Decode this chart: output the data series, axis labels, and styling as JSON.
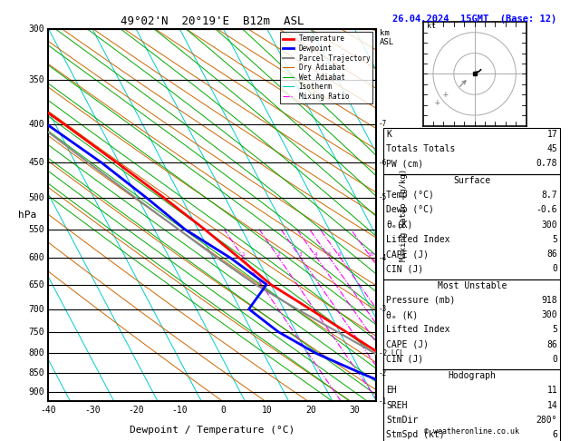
{
  "title_left": "49°02'N  20°19'E  B12m  ASL",
  "title_right": "26.04.2024  15GMT  (Base: 12)",
  "xlabel": "Dewpoint / Temperature (°C)",
  "pressure_levels": [
    300,
    350,
    400,
    450,
    500,
    550,
    600,
    650,
    700,
    750,
    800,
    850,
    900
  ],
  "pmin": 300,
  "pmax": 925,
  "tmin": -40,
  "tmax": 35,
  "temp_profile": {
    "pressure": [
      925,
      900,
      850,
      800,
      750,
      700,
      650,
      600,
      550,
      500,
      450,
      400,
      350,
      300
    ],
    "temperature": [
      8.7,
      6.5,
      2.0,
      -3.5,
      -8.5,
      -14.0,
      -20.0,
      -24.0,
      -28.5,
      -34.0,
      -40.5,
      -48.0,
      -57.0,
      -44.0
    ]
  },
  "dewp_profile": {
    "pressure": [
      925,
      900,
      850,
      800,
      750,
      700,
      650,
      600,
      550,
      500,
      450,
      400,
      350,
      300
    ],
    "dewpoint": [
      -0.6,
      -2.0,
      -10.0,
      -18.0,
      -24.0,
      -28.0,
      -21.0,
      -26.0,
      -33.0,
      -38.0,
      -44.0,
      -52.0,
      -60.0,
      -54.0
    ]
  },
  "parcel_profile": {
    "pressure": [
      925,
      900,
      850,
      800,
      750,
      700,
      650,
      600,
      550,
      500,
      450,
      400,
      350,
      300
    ],
    "temperature": [
      8.7,
      6.5,
      1.5,
      -4.5,
      -10.5,
      -17.0,
      -23.5,
      -29.0,
      -34.5,
      -40.5,
      -47.0,
      -54.0,
      -61.0,
      -54.0
    ]
  },
  "mixing_ratio_lines": [
    1,
    2,
    3,
    4,
    5,
    6,
    10,
    15,
    20,
    25
  ],
  "right_panel": {
    "K": 17,
    "TotTot": 45,
    "PW": 0.78,
    "surf_temp": 8.7,
    "surf_dewp": -0.6,
    "surf_theta_e": 300,
    "surf_li": 5,
    "surf_cape": 86,
    "surf_cin": 0,
    "mu_pressure": 918,
    "mu_theta_e": 300,
    "mu_li": 5,
    "mu_cape": 86,
    "mu_cin": 0,
    "EH": 11,
    "SREH": 14,
    "StmDir": 280,
    "StmSpd": 6
  },
  "skew_degC_per_decade_p": 45.0,
  "legend_items": [
    {
      "label": "Temperature",
      "color": "#ff0000",
      "lw": 2.0,
      "ls": "-"
    },
    {
      "label": "Dewpoint",
      "color": "#0000ff",
      "lw": 2.0,
      "ls": "-"
    },
    {
      "label": "Parcel Trajectory",
      "color": "#888888",
      "lw": 1.5,
      "ls": "-"
    },
    {
      "label": "Dry Adiabat",
      "color": "#cc6600",
      "lw": 0.8,
      "ls": "-"
    },
    {
      "label": "Wet Adiabat",
      "color": "#00aa00",
      "lw": 0.8,
      "ls": "-"
    },
    {
      "label": "Isotherm",
      "color": "#00cccc",
      "lw": 0.8,
      "ls": "-"
    },
    {
      "label": "Mixing Ratio",
      "color": "#ff00ff",
      "lw": 0.8,
      "ls": "-."
    }
  ]
}
